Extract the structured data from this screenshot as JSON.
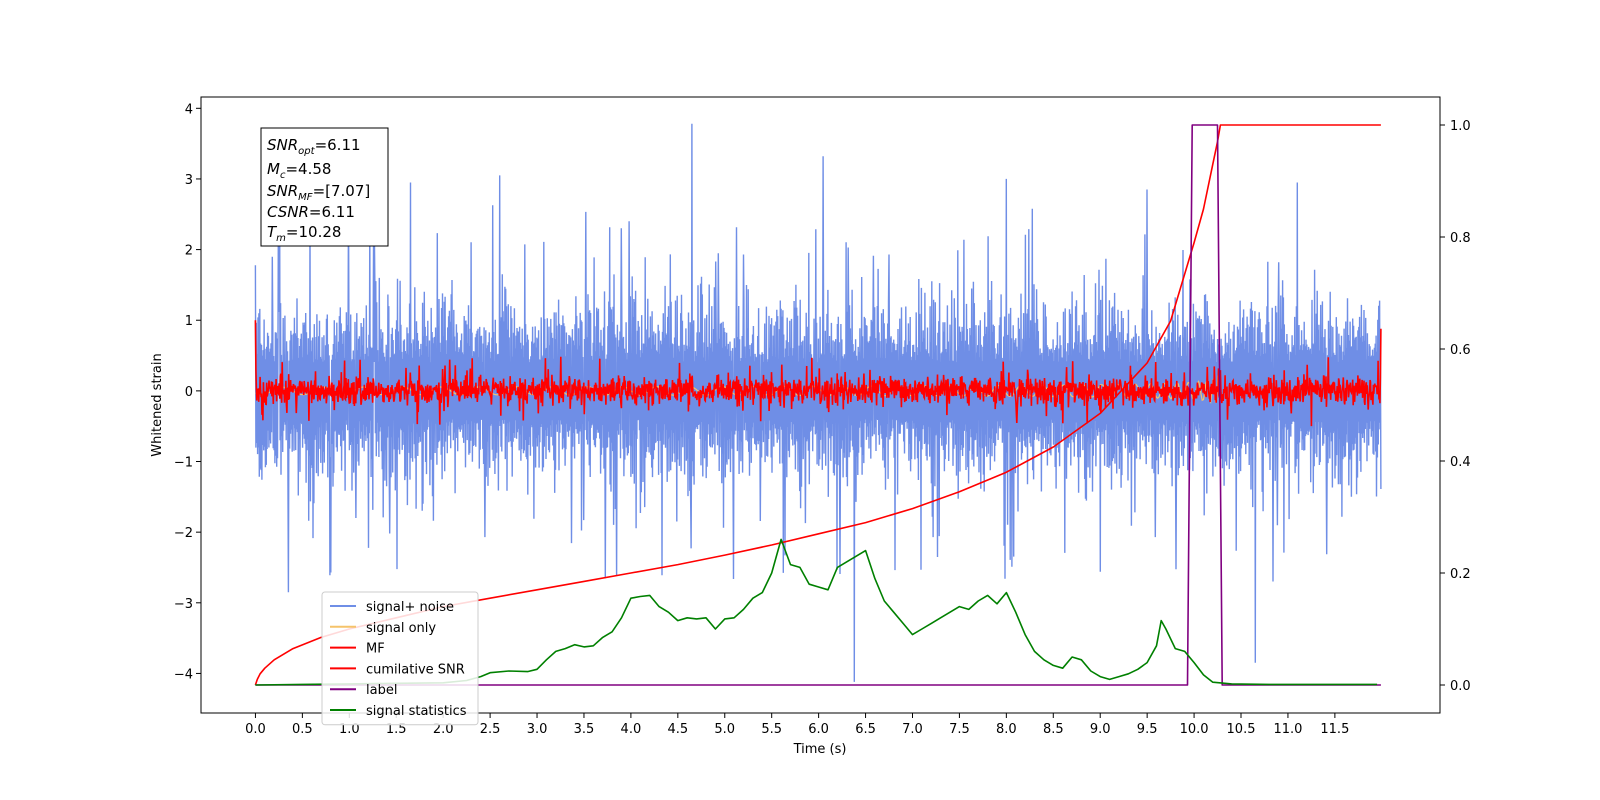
{
  "chart_data": {
    "type": "line",
    "xlabel": "Time (s)",
    "ylabel": "Whitened strain",
    "xlim": [
      -0.58,
      12.62
    ],
    "ylim_left": [
      -4.56,
      4.16
    ],
    "ylim_right": [
      -0.05,
      1.05
    ],
    "x_ticks": [
      "0.0",
      "0.5",
      "1.0",
      "1.5",
      "2.0",
      "2.5",
      "3.0",
      "3.5",
      "4.0",
      "4.5",
      "5.0",
      "5.5",
      "6.0",
      "6.5",
      "7.0",
      "7.5",
      "8.0",
      "8.5",
      "9.0",
      "9.5",
      "10.0",
      "10.5",
      "11.0",
      "11.5"
    ],
    "y_ticks_left": [
      "−4",
      "−3",
      "−2",
      "−1",
      "0",
      "1",
      "2",
      "3",
      "4"
    ],
    "y_ticks_right": [
      "0.0",
      "0.2",
      "0.4",
      "0.6",
      "0.8",
      "1.0"
    ],
    "legend_position": "lower-left",
    "colors": {
      "signal_noise": "#6f8ee6",
      "signal_only": "#f5c36a",
      "mf": "#ff0000",
      "cumulative_snr": "#ff0000",
      "label": "#800080",
      "signal_statistics": "#008000"
    },
    "annotation": {
      "snr_opt": {
        "sym": "SNR",
        "sub": "opt",
        "value": "=6.11"
      },
      "mc": {
        "sym": "M",
        "sub": "c",
        "value": "=4.58"
      },
      "snr_mf": {
        "sym": "SNR",
        "sub": "MF",
        "value": "=[7.07]"
      },
      "csnr": {
        "sym": "CSNR",
        "sub": "",
        "value": "=6.11"
      },
      "tm": {
        "sym": "T",
        "sub": "m",
        "value": "=10.28"
      }
    },
    "series": [
      {
        "name": "signal+ noise",
        "axis": "left",
        "style": "noise",
        "x_range": [
          0.0,
          11.99
        ],
        "envelope_low": -1.35,
        "envelope_high": 1.25,
        "peaks": [
          [
            4.65,
            3.78
          ],
          [
            6.38,
            -4.12
          ],
          [
            10.65,
            -3.85
          ],
          [
            0.35,
            -2.85
          ],
          [
            6.05,
            3.32
          ],
          [
            2.6,
            3.05
          ],
          [
            1.65,
            2.95
          ],
          [
            8.0,
            3.0
          ],
          [
            9.5,
            2.85
          ],
          [
            11.1,
            2.95
          ]
        ]
      },
      {
        "name": "signal only",
        "axis": "left",
        "style": "chirp",
        "x_range": [
          0.0,
          10.28
        ],
        "amplitude_end": 0.25
      },
      {
        "name": "MF",
        "axis": "left",
        "style": "noise-small",
        "x_range": [
          0.0,
          11.99
        ],
        "envelope_low": -0.22,
        "envelope_high": 0.22,
        "start_value": 1.0,
        "end_value": 0.88
      },
      {
        "name": "cumilative SNR",
        "axis": "right",
        "x": [
          0.0,
          0.02,
          0.05,
          0.1,
          0.2,
          0.4,
          0.7,
          1.0,
          1.5,
          2.0,
          2.5,
          3.0,
          3.5,
          4.0,
          4.5,
          5.0,
          5.5,
          6.0,
          6.5,
          7.0,
          7.5,
          8.0,
          8.5,
          9.0,
          9.5,
          9.75,
          10.0,
          10.1,
          10.2,
          10.25,
          10.28,
          10.5,
          11.0,
          11.5,
          11.99
        ],
        "values": [
          0.0,
          0.01,
          0.02,
          0.03,
          0.045,
          0.065,
          0.085,
          0.1,
          0.12,
          0.14,
          0.155,
          0.17,
          0.185,
          0.2,
          0.215,
          0.232,
          0.25,
          0.27,
          0.29,
          0.315,
          0.345,
          0.38,
          0.425,
          0.485,
          0.575,
          0.65,
          0.79,
          0.85,
          0.93,
          0.97,
          1.0,
          1.0,
          1.0,
          1.0,
          1.0
        ]
      },
      {
        "name": "label",
        "axis": "right",
        "x": [
          0.0,
          9.93,
          9.98,
          10.25,
          10.3,
          11.99
        ],
        "values": [
          0.0,
          0.0,
          1.0,
          1.0,
          0.0,
          0.0
        ]
      },
      {
        "name": "signal statistics",
        "axis": "right",
        "x": [
          0.0,
          0.5,
          1.0,
          1.5,
          2.0,
          2.25,
          2.4,
          2.5,
          2.7,
          2.9,
          3.0,
          3.1,
          3.2,
          3.3,
          3.4,
          3.5,
          3.6,
          3.7,
          3.8,
          3.9,
          4.0,
          4.1,
          4.2,
          4.3,
          4.4,
          4.5,
          4.6,
          4.7,
          4.8,
          4.9,
          5.0,
          5.1,
          5.2,
          5.3,
          5.4,
          5.5,
          5.6,
          5.7,
          5.8,
          5.9,
          6.0,
          6.1,
          6.2,
          6.3,
          6.4,
          6.5,
          6.6,
          6.7,
          6.8,
          6.9,
          7.0,
          7.1,
          7.2,
          7.3,
          7.4,
          7.5,
          7.6,
          7.7,
          7.8,
          7.9,
          8.0,
          8.1,
          8.2,
          8.3,
          8.4,
          8.5,
          8.6,
          8.7,
          8.8,
          8.9,
          9.0,
          9.1,
          9.2,
          9.3,
          9.4,
          9.5,
          9.6,
          9.65,
          9.7,
          9.8,
          9.9,
          10.0,
          10.1,
          10.2,
          10.4,
          10.8,
          11.2,
          11.6,
          11.95
        ],
        "values": [
          0.0,
          0.001,
          0.002,
          0.003,
          0.004,
          0.008,
          0.015,
          0.022,
          0.025,
          0.024,
          0.028,
          0.045,
          0.06,
          0.065,
          0.072,
          0.068,
          0.07,
          0.085,
          0.095,
          0.12,
          0.155,
          0.158,
          0.16,
          0.14,
          0.13,
          0.115,
          0.12,
          0.118,
          0.12,
          0.1,
          0.118,
          0.12,
          0.135,
          0.155,
          0.165,
          0.2,
          0.26,
          0.215,
          0.21,
          0.18,
          0.175,
          0.17,
          0.21,
          0.22,
          0.23,
          0.24,
          0.19,
          0.15,
          0.13,
          0.11,
          0.09,
          0.1,
          0.11,
          0.12,
          0.13,
          0.14,
          0.135,
          0.15,
          0.16,
          0.145,
          0.165,
          0.13,
          0.09,
          0.06,
          0.045,
          0.035,
          0.03,
          0.05,
          0.045,
          0.025,
          0.015,
          0.01,
          0.015,
          0.02,
          0.028,
          0.04,
          0.07,
          0.115,
          0.1,
          0.065,
          0.06,
          0.04,
          0.018,
          0.005,
          0.002,
          0.001,
          0.001,
          0.001,
          0.001
        ]
      }
    ]
  }
}
